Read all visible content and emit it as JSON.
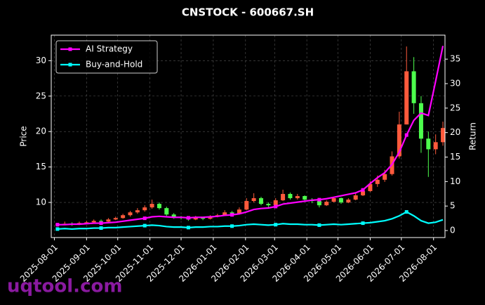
{
  "chart_data": {
    "type": "candlestick",
    "title": "CNSTOCK - 600667.SH",
    "ylabel": "Price",
    "y2label": "Return",
    "watermark": "uqtool.com",
    "x": [
      "2025-08-04",
      "2025-08-11",
      "2025-08-18",
      "2025-08-25",
      "2025-09-01",
      "2025-09-08",
      "2025-09-15",
      "2025-09-22",
      "2025-09-29",
      "2025-10-06",
      "2025-10-13",
      "2025-10-20",
      "2025-10-27",
      "2025-11-03",
      "2025-11-10",
      "2025-11-17",
      "2025-11-24",
      "2025-12-01",
      "2025-12-08",
      "2025-12-15",
      "2025-12-22",
      "2025-12-29",
      "2026-01-05",
      "2026-01-12",
      "2026-01-19",
      "2026-01-26",
      "2026-02-02",
      "2026-02-09",
      "2026-02-16",
      "2026-02-23",
      "2026-03-02",
      "2026-03-09",
      "2026-03-16",
      "2026-03-23",
      "2026-03-30",
      "2026-04-06",
      "2026-04-13",
      "2026-04-20",
      "2026-04-27",
      "2026-05-04",
      "2026-05-11",
      "2026-05-18",
      "2026-05-25",
      "2026-06-01",
      "2026-06-08",
      "2026-06-15",
      "2026-06-22",
      "2026-06-29",
      "2026-07-06",
      "2026-07-13",
      "2026-07-20",
      "2026-07-27",
      "2026-08-03",
      "2026-08-10"
    ],
    "open": [
      6.8,
      6.9,
      7.0,
      6.9,
      7.1,
      7.2,
      7.4,
      7.3,
      7.6,
      7.8,
      8.2,
      8.6,
      8.9,
      9.3,
      9.8,
      9.2,
      8.3,
      7.9,
      7.8,
      7.6,
      7.9,
      7.7,
      8.0,
      8.2,
      8.6,
      8.4,
      9.0,
      10.2,
      10.6,
      9.8,
      9.6,
      10.3,
      11.2,
      10.6,
      10.9,
      10.4,
      10.2,
      9.6,
      10.1,
      10.6,
      10.0,
      10.4,
      11.0,
      11.6,
      12.6,
      13.2,
      14.0,
      16.5,
      21.0,
      28.5,
      24.0,
      19.0,
      17.5,
      18.5
    ],
    "high": [
      7.1,
      7.3,
      7.2,
      7.3,
      7.4,
      7.6,
      7.6,
      7.8,
      8.0,
      8.4,
      8.8,
      9.2,
      9.6,
      10.4,
      10.0,
      9.4,
      8.5,
      8.1,
      8.0,
      8.1,
      8.0,
      8.2,
      8.4,
      8.9,
      8.8,
      9.3,
      10.6,
      11.3,
      10.8,
      10.0,
      10.6,
      11.8,
      11.4,
      11.2,
      11.0,
      10.6,
      10.3,
      10.3,
      10.8,
      10.7,
      10.6,
      11.3,
      12.0,
      13.0,
      13.8,
      14.6,
      17.2,
      22.8,
      32.0,
      30.5,
      25.0,
      20.0,
      19.6,
      21.4
    ],
    "low": [
      6.6,
      6.8,
      6.7,
      6.8,
      7.0,
      7.1,
      7.1,
      7.2,
      7.5,
      7.7,
      8.0,
      8.4,
      8.7,
      9.1,
      9.0,
      8.1,
      7.7,
      7.6,
      7.4,
      7.5,
      7.5,
      7.6,
      7.9,
      8.1,
      8.2,
      8.3,
      8.9,
      10.0,
      9.6,
      9.3,
      9.5,
      10.2,
      10.4,
      10.4,
      10.1,
      9.9,
      9.3,
      9.5,
      10.0,
      9.8,
      9.9,
      10.3,
      10.9,
      11.5,
      12.2,
      12.9,
      13.8,
      16.2,
      21.0,
      22.5,
      17.0,
      13.6,
      16.8,
      18.0
    ],
    "close": [
      6.9,
      7.0,
      6.9,
      7.1,
      7.2,
      7.4,
      7.3,
      7.6,
      7.8,
      8.2,
      8.6,
      8.9,
      9.3,
      9.8,
      9.2,
      8.3,
      7.9,
      7.8,
      7.6,
      7.9,
      7.7,
      8.0,
      8.2,
      8.6,
      8.4,
      9.0,
      10.2,
      10.6,
      9.8,
      9.6,
      10.3,
      11.2,
      10.6,
      10.9,
      10.4,
      10.2,
      9.6,
      10.1,
      10.6,
      10.0,
      10.4,
      11.0,
      11.6,
      12.6,
      13.2,
      14.0,
      16.5,
      21.0,
      28.5,
      24.0,
      19.0,
      17.5,
      18.5,
      20.5
    ],
    "up_color": "#ff5a3c",
    "down_color": "#4dff4d",
    "series": [
      {
        "name": "AI Strategy",
        "color": "#ff00ff",
        "axis": "y2",
        "values": [
          1.2,
          1.2,
          1.3,
          1.3,
          1.4,
          1.5,
          1.5,
          1.6,
          1.7,
          1.9,
          2.1,
          2.3,
          2.5,
          2.8,
          2.9,
          2.8,
          2.7,
          2.7,
          2.6,
          2.7,
          2.7,
          2.8,
          2.9,
          3.1,
          3.2,
          3.4,
          3.8,
          4.3,
          4.5,
          4.6,
          4.9,
          5.4,
          5.6,
          5.8,
          6.0,
          6.2,
          6.3,
          6.5,
          6.8,
          7.1,
          7.4,
          7.7,
          8.3,
          9.6,
          10.8,
          11.8,
          13.5,
          16.0,
          19.5,
          22.5,
          24.0,
          23.5,
          30.5,
          37.7
        ]
      },
      {
        "name": "Buy-and-Hold",
        "color": "#00ffff",
        "axis": "y2",
        "values": [
          0.3,
          0.4,
          0.3,
          0.4,
          0.4,
          0.5,
          0.5,
          0.6,
          0.6,
          0.7,
          0.8,
          0.9,
          1.0,
          1.1,
          1.0,
          0.8,
          0.7,
          0.7,
          0.6,
          0.7,
          0.7,
          0.8,
          0.8,
          0.9,
          0.9,
          1.0,
          1.2,
          1.3,
          1.2,
          1.1,
          1.2,
          1.4,
          1.3,
          1.3,
          1.2,
          1.2,
          1.1,
          1.2,
          1.3,
          1.2,
          1.3,
          1.4,
          1.5,
          1.6,
          1.8,
          2.0,
          2.4,
          3.0,
          3.8,
          3.0,
          2.0,
          1.5,
          1.7,
          2.2
        ]
      }
    ],
    "xlim": [
      "2025-07-29",
      "2026-08-12"
    ],
    "xticks": [
      "2025-08-01",
      "2025-09-01",
      "2025-10-01",
      "2025-11-01",
      "2025-12-01",
      "2026-01-01",
      "2026-02-01",
      "2026-03-01",
      "2026-04-01",
      "2026-05-01",
      "2026-06-01",
      "2026-07-01",
      "2026-08-01"
    ],
    "ylim": [
      5.05,
      33.6
    ],
    "yticks": [
      10,
      15,
      20,
      25,
      30
    ],
    "y2lim": [
      -1.43,
      39.9
    ],
    "y2ticks": [
      0,
      5,
      10,
      15,
      20,
      25,
      30,
      35
    ],
    "grid": true,
    "legend": "upper left"
  }
}
